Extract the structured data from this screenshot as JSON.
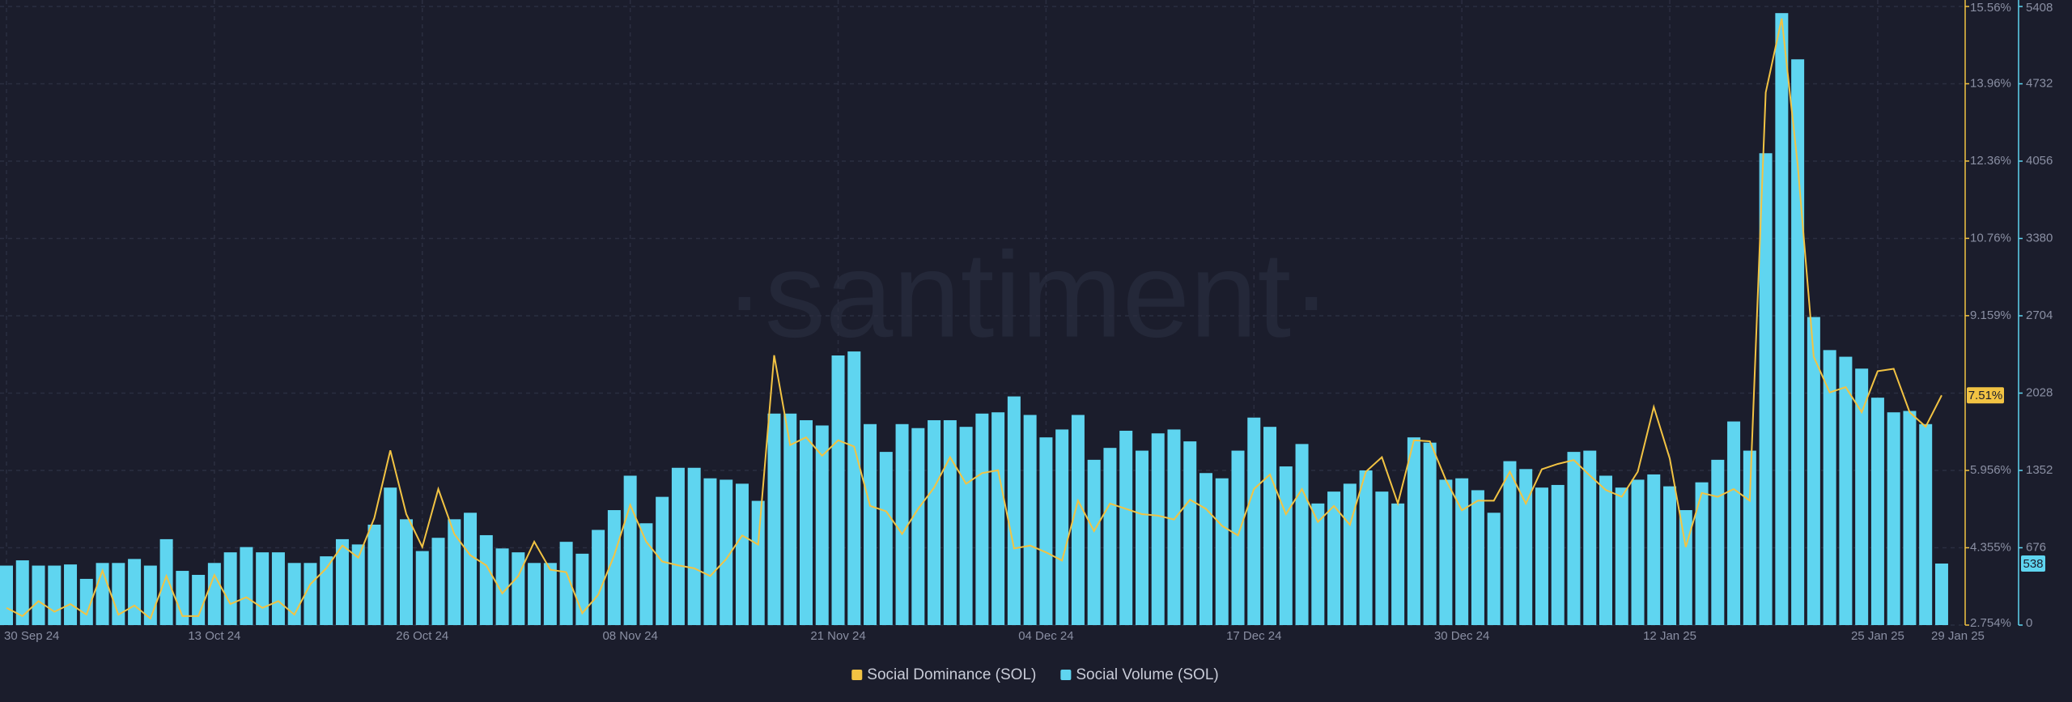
{
  "chart_data": {
    "type": "bar",
    "watermark": "·santiment·",
    "grid": true,
    "categories": [
      "30 Sep 24",
      null,
      null,
      null,
      null,
      null,
      null,
      null,
      null,
      null,
      null,
      null,
      null,
      "13 Oct 24",
      null,
      null,
      null,
      null,
      null,
      null,
      null,
      null,
      null,
      null,
      null,
      null,
      "26 Oct 24",
      null,
      null,
      null,
      null,
      null,
      null,
      null,
      null,
      null,
      null,
      null,
      null,
      "08 Nov 24",
      null,
      null,
      null,
      null,
      null,
      null,
      null,
      null,
      null,
      null,
      null,
      null,
      "21 Nov 24",
      null,
      null,
      null,
      null,
      null,
      null,
      null,
      null,
      null,
      null,
      null,
      null,
      "04 Dec 24",
      null,
      null,
      null,
      null,
      null,
      null,
      null,
      null,
      null,
      null,
      null,
      null,
      "17 Dec 24",
      null,
      null,
      null,
      null,
      null,
      null,
      null,
      null,
      null,
      null,
      null,
      null,
      "30 Dec 24",
      null,
      null,
      null,
      null,
      null,
      null,
      null,
      null,
      null,
      null,
      null,
      null,
      "12 Jan 25",
      null,
      null,
      null,
      null,
      null,
      null,
      null,
      null,
      null,
      null,
      null,
      null,
      "25 Jan 25",
      null,
      null,
      null,
      "29 Jan 25"
    ],
    "ylim": [
      0,
      5408
    ],
    "yticks": [
      0,
      676,
      1352,
      2028,
      2704,
      3380,
      4056,
      4732,
      5408
    ],
    "y2lim": [
      2.754,
      15.56
    ],
    "y2ticks": [
      {
        "value": 2.754,
        "label": "2.754%"
      },
      {
        "value": 4.355,
        "label": "4.355%"
      },
      {
        "value": 5.956,
        "label": "5.956%"
      },
      {
        "value": 9.159,
        "label": "9.159%"
      },
      {
        "value": 10.76,
        "label": "10.76%"
      },
      {
        "value": 12.36,
        "label": "12.36%"
      },
      {
        "value": 13.96,
        "label": "13.96%"
      },
      {
        "value": 15.56,
        "label": "15.56%"
      }
    ],
    "series": [
      {
        "name": "Social Dominance (SOL)",
        "type": "line",
        "axis": "y2",
        "color": "#f2c343",
        "last_value_label": "7.51%",
        "values": [
          3.11,
          2.94,
          3.25,
          3.03,
          3.19,
          2.97,
          3.88,
          2.97,
          3.16,
          2.89,
          3.77,
          2.94,
          2.94,
          3.79,
          3.19,
          3.33,
          3.11,
          3.25,
          2.97,
          3.6,
          3.93,
          4.4,
          4.15,
          4.97,
          6.37,
          5.05,
          4.37,
          5.57,
          4.64,
          4.2,
          3.99,
          3.41,
          3.77,
          4.48,
          3.9,
          3.85,
          3.0,
          3.38,
          4.2,
          5.24,
          4.48,
          4.07,
          3.99,
          3.93,
          3.77,
          4.12,
          4.61,
          4.42,
          8.34,
          6.48,
          6.64,
          6.26,
          6.58,
          6.45,
          5.22,
          5.11,
          4.64,
          5.16,
          5.6,
          6.23,
          5.68,
          5.9,
          5.96,
          4.34,
          4.4,
          4.26,
          4.09,
          5.33,
          4.7,
          5.27,
          5.16,
          5.05,
          5.02,
          4.94,
          5.35,
          5.16,
          4.81,
          4.61,
          5.57,
          5.87,
          5.05,
          5.57,
          4.89,
          5.22,
          4.83,
          5.93,
          6.23,
          5.27,
          6.58,
          6.56,
          5.76,
          5.13,
          5.33,
          5.33,
          5.93,
          5.27,
          5.98,
          6.09,
          6.17,
          5.85,
          5.55,
          5.41,
          5.93,
          7.27,
          6.2,
          4.37,
          5.49,
          5.41,
          5.57,
          5.33,
          13.78,
          15.31,
          12.28,
          8.31,
          7.57,
          7.68,
          7.16,
          8.01,
          8.06,
          7.16,
          6.86,
          7.51
        ]
      },
      {
        "name": "Social Volume (SOL)",
        "type": "bar",
        "axis": "y",
        "color": "#5fd5f0",
        "last_value_label": "538",
        "values": [
          520,
          566,
          520,
          520,
          530,
          404,
          543,
          543,
          578,
          520,
          751,
          474,
          439,
          543,
          636,
          682,
          636,
          636,
          543,
          543,
          601,
          751,
          705,
          878,
          1202,
          925,
          647,
          763,
          925,
          982,
          786,
          670,
          636,
          543,
          543,
          728,
          624,
          832,
          1005,
          1306,
          890,
          1121,
          1375,
          1375,
          1283,
          1271,
          1236,
          1086,
          1849,
          1849,
          1791,
          1745,
          2357,
          2392,
          1757,
          1514,
          1757,
          1722,
          1791,
          1791,
          1733,
          1849,
          1860,
          1999,
          1837,
          1641,
          1710,
          1837,
          1445,
          1549,
          1699,
          1525,
          1676,
          1710,
          1606,
          1329,
          1283,
          1525,
          1814,
          1733,
          1387,
          1583,
          1063,
          1167,
          1236,
          1352,
          1167,
          1063,
          1641,
          1595,
          1271,
          1283,
          1179,
          982,
          1433,
          1364,
          1202,
          1225,
          1514,
          1525,
          1306,
          1202,
          1271,
          1317,
          1213,
          1005,
          1248,
          1445,
          1780,
          1525,
          4125,
          5350,
          4946,
          2693,
          2404,
          2346,
          2242,
          1988,
          1860,
          1872,
          1757,
          538
        ]
      }
    ]
  }
}
